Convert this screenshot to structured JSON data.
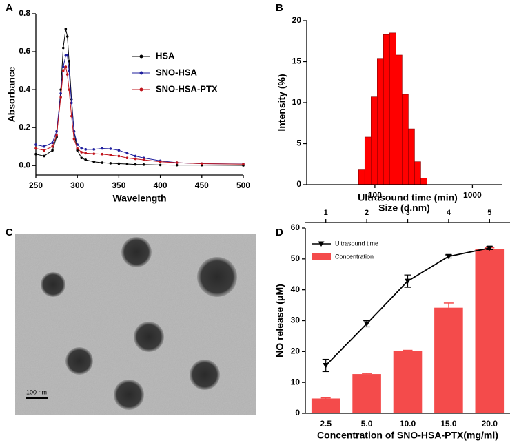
{
  "chart_data": [
    {
      "type": "line",
      "panel": "A",
      "xlabel": "Wavelength",
      "ylabel": "Absorbance",
      "x": [
        250,
        260,
        270,
        275,
        280,
        283,
        286,
        288,
        290,
        293,
        296,
        300,
        305,
        310,
        320,
        330,
        340,
        350,
        360,
        370,
        380,
        400,
        420,
        450,
        500
      ],
      "series": [
        {
          "name": "HSA",
          "color": "#000000",
          "values": [
            0.06,
            0.05,
            0.08,
            0.15,
            0.4,
            0.62,
            0.72,
            0.68,
            0.55,
            0.35,
            0.18,
            0.08,
            0.04,
            0.03,
            0.02,
            0.015,
            0.012,
            0.01,
            0.008,
            0.006,
            0.005,
            0.003,
            0.002,
            0.002,
            0.001
          ]
        },
        {
          "name": "SNO-HSA",
          "color": "#1f1f9e",
          "values": [
            0.11,
            0.1,
            0.12,
            0.18,
            0.38,
            0.52,
            0.58,
            0.58,
            0.5,
            0.33,
            0.18,
            0.11,
            0.09,
            0.085,
            0.085,
            0.09,
            0.088,
            0.08,
            0.065,
            0.05,
            0.04,
            0.025,
            0.015,
            0.01,
            0.008
          ]
        },
        {
          "name": "SNO-HSA-PTX",
          "color": "#c0141c",
          "values": [
            0.09,
            0.08,
            0.1,
            0.16,
            0.36,
            0.5,
            0.52,
            0.48,
            0.4,
            0.26,
            0.14,
            0.09,
            0.07,
            0.065,
            0.062,
            0.06,
            0.055,
            0.05,
            0.04,
            0.035,
            0.03,
            0.02,
            0.015,
            0.01,
            0.007
          ]
        }
      ],
      "xlim": [
        250,
        500
      ],
      "xticks": [
        250,
        300,
        350,
        400,
        450,
        500
      ],
      "ylim": [
        -0.05,
        0.8
      ],
      "yticks": [
        {
          "value": 0,
          "label": "0.0"
        },
        0.2,
        0.4,
        0.6,
        0.8
      ]
    },
    {
      "type": "histogram",
      "panel": "B",
      "xlabel": "Size (d.nm)",
      "ylabel": "Intensity (%)",
      "color": "#ff0000",
      "bins": [
        68.1,
        78.8,
        91.3,
        105.7,
        122.4,
        141.8,
        164.2,
        190.1,
        220.2,
        255.0,
        295.3,
        342.0
      ],
      "values": [
        1.8,
        5.8,
        10.7,
        15.4,
        18.3,
        18.5,
        15.8,
        11.0,
        6.8,
        2.8,
        0.8
      ],
      "xscale": "log",
      "xlim": [
        20,
        2000
      ],
      "xticks": [
        100,
        1000
      ],
      "ylim": [
        0,
        20
      ],
      "yticks": [
        0,
        5,
        10,
        15,
        20
      ]
    },
    {
      "type": "bar",
      "panel": "D",
      "xlabel": "Concentration of SNO-HSA-PTX(mg/ml)",
      "x2label": "Ultrasound time (min)",
      "ylabel": "NO release (μM)",
      "categories": [
        "2.5",
        "5.0",
        "10.0",
        "15.0",
        "20.0"
      ],
      "series": [
        {
          "name": "Ultrasound time",
          "color": "#000000",
          "axis": "x2",
          "x": [
            1,
            2,
            3,
            4,
            5
          ],
          "values": [
            15.5,
            29,
            42.8,
            50.8,
            53.5
          ],
          "errors": [
            2,
            1,
            2,
            0.5,
            0.5
          ]
        },
        {
          "name": "Concentration",
          "color": "#f44b4b",
          "values": [
            4.8,
            12.7,
            20.2,
            34.2,
            53.3
          ],
          "errors": [
            0.2,
            0.2,
            0.2,
            1.5,
            0.3
          ]
        }
      ],
      "x2lim": [
        0.5,
        5.5
      ],
      "x2ticks": [
        1,
        2,
        3,
        4,
        5
      ],
      "ylim": [
        0,
        60
      ],
      "yticks": [
        0,
        10,
        20,
        30,
        40,
        50,
        60
      ]
    }
  ],
  "image_panel": {
    "panel": "C",
    "scale_bar": "100 nm"
  }
}
